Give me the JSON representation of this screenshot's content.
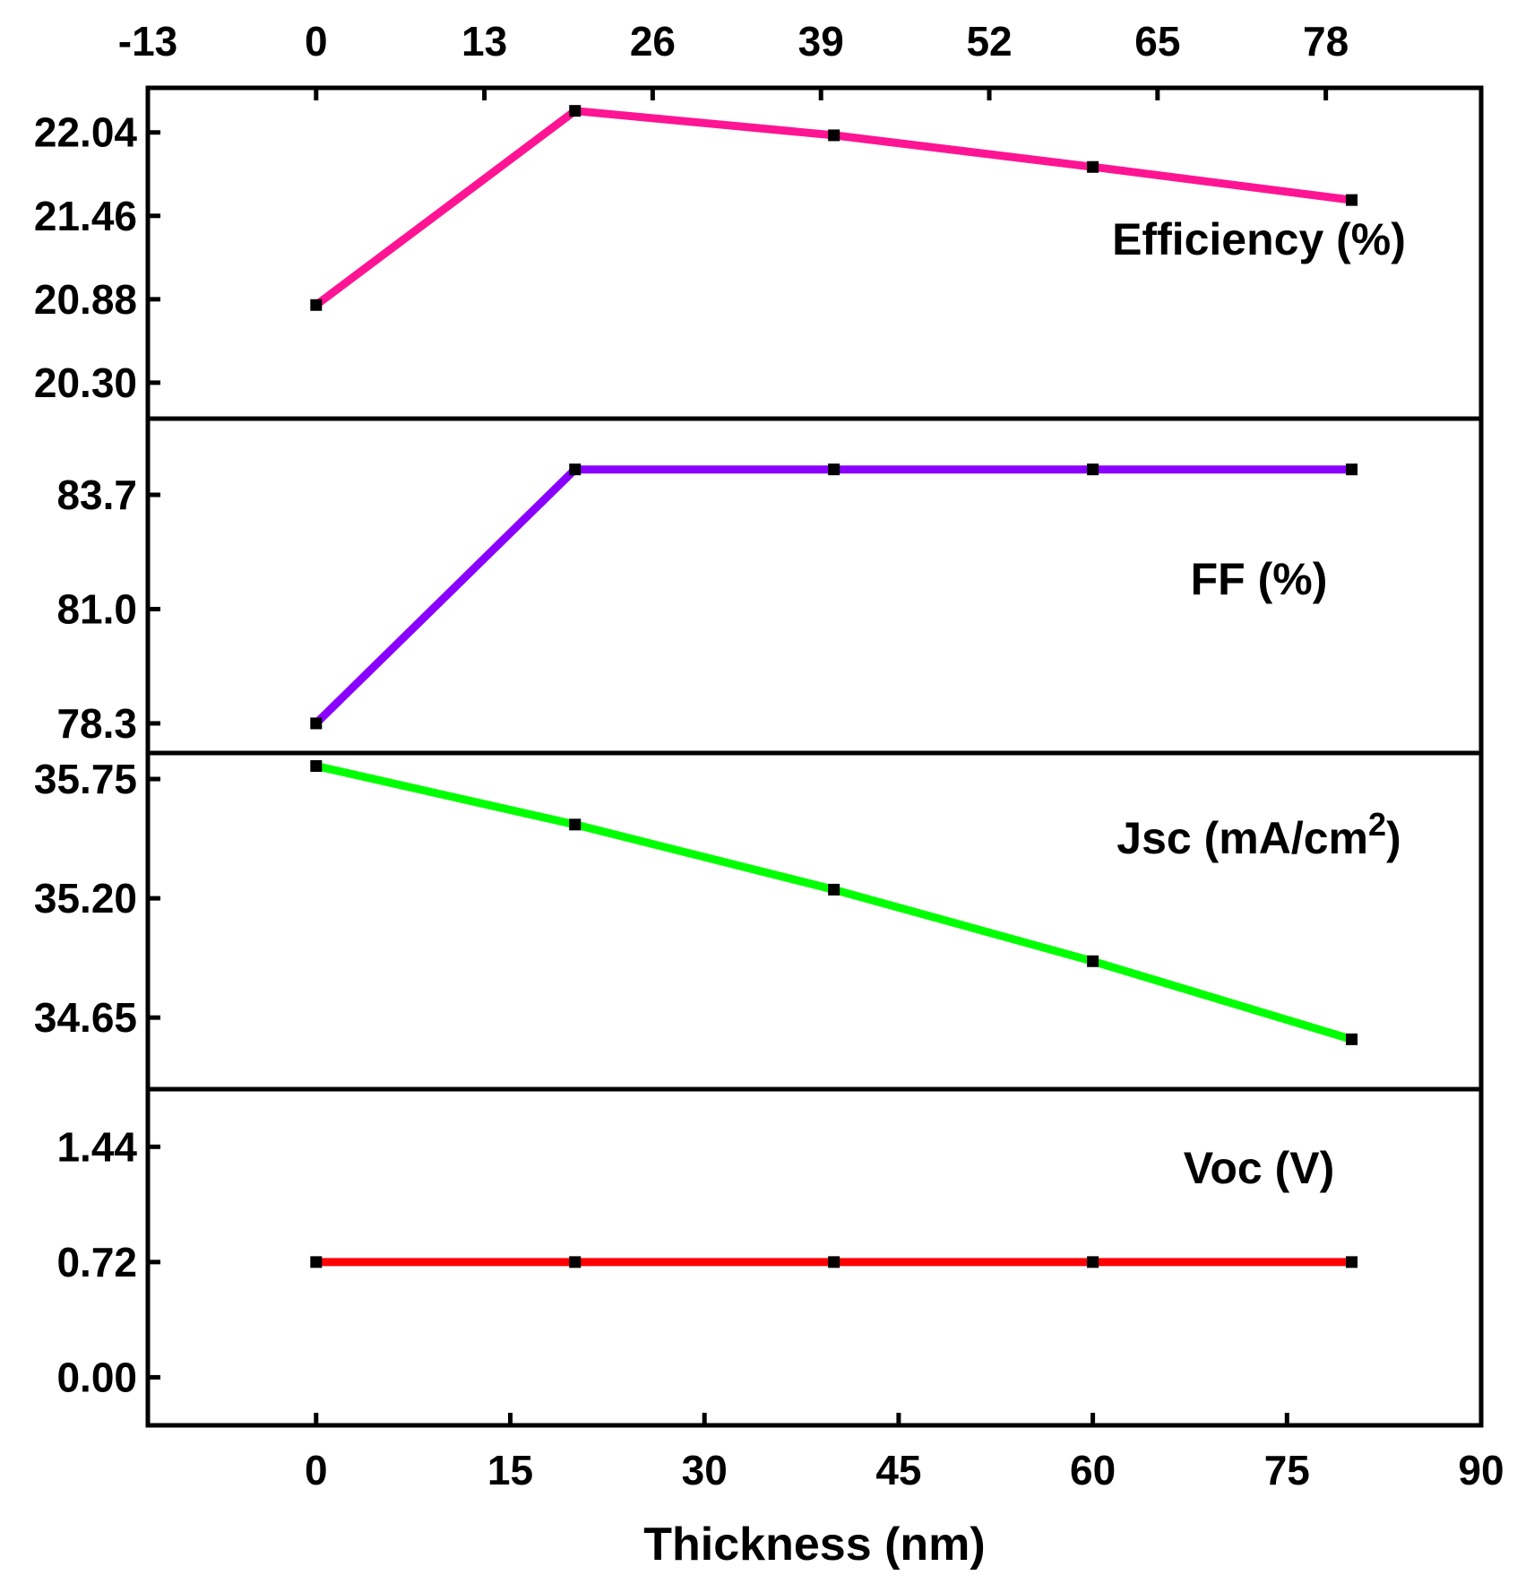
{
  "chart_data": {
    "type": "line",
    "layout": "stacked-panels",
    "x": [
      0,
      20,
      40,
      60,
      80
    ],
    "xlabel": "Thickness (nm)",
    "xlim": [
      -13,
      90
    ],
    "bottom_xticks": [
      "0",
      "15",
      "30",
      "45",
      "60",
      "75",
      "90"
    ],
    "top_xticks": [
      "-13",
      "0",
      "13",
      "26",
      "39",
      "52",
      "65",
      "78"
    ],
    "panels": [
      {
        "name": "Efficiency (%)",
        "color": "#ff1493",
        "values": [
          20.84,
          22.19,
          22.02,
          21.8,
          21.57
        ],
        "ylim": [
          20.05,
          22.35
        ],
        "yticks": [
          "20.30",
          "20.88",
          "21.46",
          "22.04"
        ]
      },
      {
        "name": "FF (%)",
        "color": "#8a00ff",
        "values": [
          78.3,
          84.3,
          84.3,
          84.3,
          84.3
        ],
        "ylim": [
          77.6,
          85.5
        ],
        "yticks": [
          "78.3",
          "81.0",
          "83.7"
        ]
      },
      {
        "name": "Jsc (mA/cm",
        "name_sup": "2",
        "name_suffix": ")",
        "color": "#00ff00",
        "values": [
          35.81,
          35.54,
          35.24,
          34.91,
          34.55
        ],
        "ylim": [
          34.32,
          35.87
        ],
        "yticks": [
          "34.65",
          "35.20",
          "35.75"
        ]
      },
      {
        "name": "Voc (V)",
        "color": "#ff0000",
        "values": [
          0.72,
          0.72,
          0.72,
          0.72,
          0.72
        ],
        "ylim": [
          -0.3,
          1.8
        ],
        "yticks": [
          "0.00",
          "0.72",
          "1.44"
        ]
      }
    ]
  }
}
